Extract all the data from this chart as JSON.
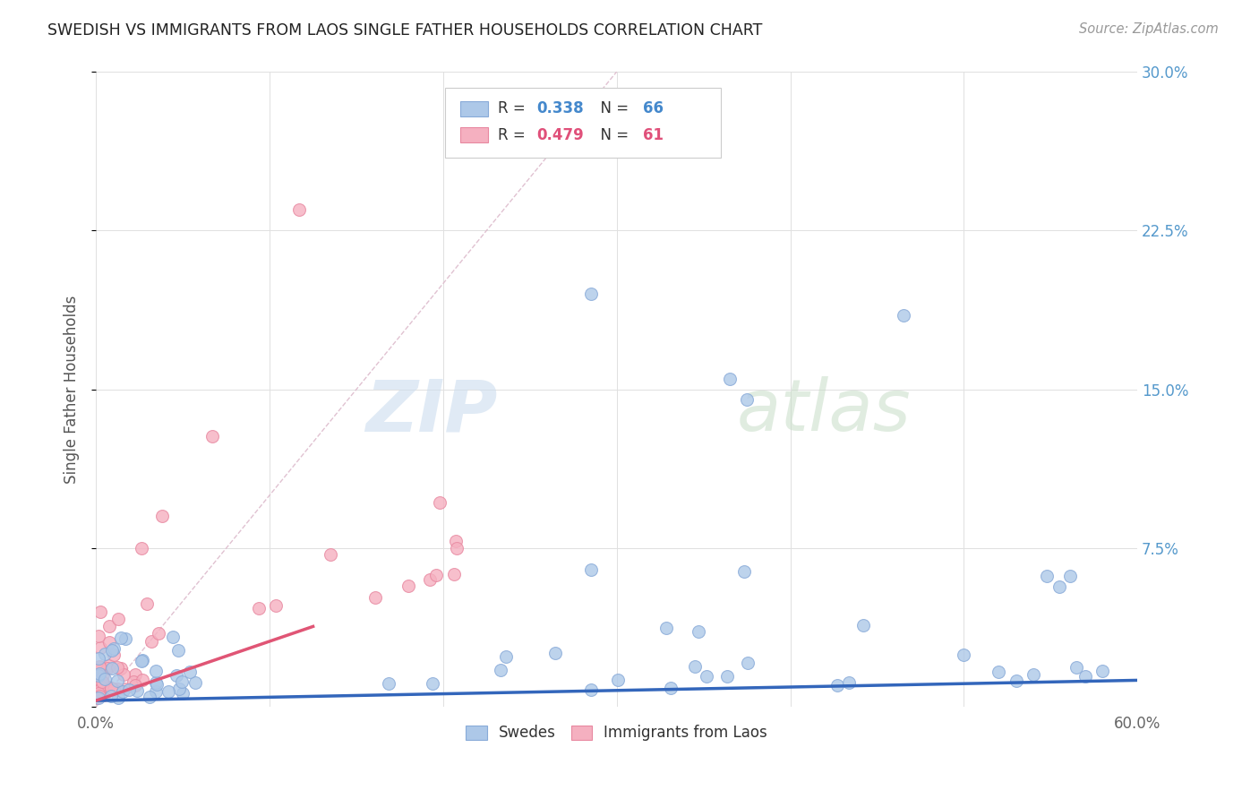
{
  "title": "SWEDISH VS IMMIGRANTS FROM LAOS SINGLE FATHER HOUSEHOLDS CORRELATION CHART",
  "source": "Source: ZipAtlas.com",
  "ylabel": "Single Father Households",
  "xlim": [
    0.0,
    0.6
  ],
  "ylim": [
    0.0,
    0.3
  ],
  "xticks": [
    0.0,
    0.1,
    0.2,
    0.3,
    0.4,
    0.5,
    0.6
  ],
  "xticklabels": [
    "0.0%",
    "",
    "",
    "",
    "",
    "",
    "60.0%"
  ],
  "yticks": [
    0.0,
    0.075,
    0.15,
    0.225,
    0.3
  ],
  "yticklabels": [
    "",
    "7.5%",
    "15.0%",
    "22.5%",
    "30.0%"
  ],
  "R_blue": 0.338,
  "N_blue": 66,
  "R_pink": 0.479,
  "N_pink": 61,
  "blue_color": "#adc8e8",
  "pink_color": "#f5b0c0",
  "blue_line_color": "#3366bb",
  "pink_line_color": "#e05575",
  "blue_edge_color": "#88aad8",
  "pink_edge_color": "#e888a0",
  "legend_label_blue": "Swedes",
  "legend_label_pink": "Immigrants from Laos",
  "background_color": "#ffffff",
  "grid_color": "#e0e0e0",
  "title_color": "#222222",
  "blue_slope": 0.016,
  "blue_intercept": 0.003,
  "pink_slope": 0.28,
  "pink_intercept": 0.003,
  "diag_color": "#ddbbcc",
  "right_ytick_color": "#5599cc"
}
